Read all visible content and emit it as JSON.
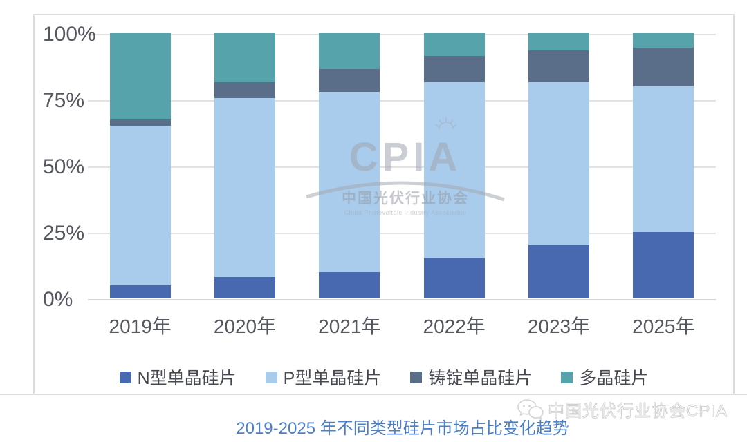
{
  "chart_data": {
    "type": "bar",
    "stacked": true,
    "categories": [
      "2019年",
      "2020年",
      "2021年",
      "2022年",
      "2023年",
      "2025年"
    ],
    "series": [
      {
        "name": "N型单晶硅片",
        "color": "#4868AF",
        "values": [
          5,
          8,
          10,
          15,
          20,
          25
        ]
      },
      {
        "name": "P型单晶硅片",
        "color": "#A9CBEC",
        "values": [
          60,
          67.5,
          68,
          66.5,
          61.5,
          55
        ]
      },
      {
        "name": "铸锭单晶硅片",
        "color": "#5A6D89",
        "values": [
          2.5,
          6,
          8.5,
          10,
          12,
          14.5
        ]
      },
      {
        "name": "多晶硅片",
        "color": "#57A3AC",
        "values": [
          32.5,
          18.5,
          13.5,
          8.5,
          6.5,
          5.5
        ]
      }
    ],
    "y_ticks": [
      {
        "label": "0%",
        "value": 0
      },
      {
        "label": "25%",
        "value": 25
      },
      {
        "label": "50%",
        "value": 50
      },
      {
        "label": "75%",
        "value": 75
      },
      {
        "label": "100%",
        "value": 100
      }
    ],
    "ylim": [
      0,
      100
    ],
    "grid": true,
    "legend_position": "bottom",
    "title": "2019-2025 年不同类型硅片市场占比变化趋势"
  },
  "watermark": {
    "logo_text": "CPIA",
    "org_cn": "中国光伏行业协会",
    "org_en": "China Photovoltaic Industry Association"
  },
  "footer": {
    "caption": "2019-2025 年不同类型硅片市场占比变化趋势",
    "wechat_watermark": "中国光伏行业协会CPIA"
  }
}
